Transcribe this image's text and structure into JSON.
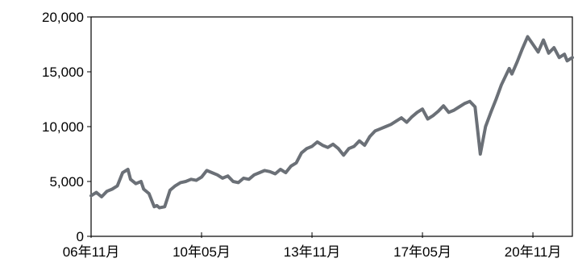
{
  "chart_data": {
    "type": "line",
    "title": "",
    "xlabel": "",
    "ylabel": "",
    "ylim": [
      0,
      20000
    ],
    "grid": false,
    "legend": "none",
    "x_tick_labels": [
      "06年11月",
      "10年05月",
      "13年11月",
      "17年05月",
      "20年11月"
    ],
    "y_tick_labels": [
      "0",
      "5,000",
      "10,000",
      "15,000",
      "20,000"
    ],
    "y_tick_values": [
      0,
      5000,
      10000,
      15000,
      20000
    ],
    "x_tick_positions": [
      0,
      42,
      84,
      126,
      168
    ],
    "x_range": [
      0,
      183
    ],
    "x_unit": "months since 06年11月",
    "series": [
      {
        "color": "#6b7077",
        "x": [
          0,
          2,
          4,
          6,
          8,
          10,
          12,
          14,
          15,
          17,
          19,
          20,
          22,
          24,
          25,
          26,
          28,
          30,
          32,
          34,
          36,
          38,
          40,
          42,
          44,
          46,
          48,
          50,
          52,
          54,
          56,
          58,
          60,
          62,
          64,
          66,
          68,
          70,
          72,
          74,
          76,
          78,
          80,
          82,
          84,
          86,
          88,
          90,
          92,
          94,
          96,
          98,
          100,
          102,
          104,
          106,
          108,
          110,
          112,
          114,
          116,
          118,
          120,
          122,
          124,
          126,
          128,
          130,
          132,
          134,
          136,
          138,
          140,
          142,
          144,
          146,
          148,
          150,
          152,
          154,
          156,
          158,
          159,
          160,
          162,
          164,
          166,
          168,
          170,
          172,
          174,
          176,
          178,
          180,
          181,
          183
        ],
        "values": [
          3700,
          4000,
          3600,
          4100,
          4300,
          4600,
          5800,
          6100,
          5200,
          4800,
          5000,
          4300,
          3900,
          2700,
          2800,
          2600,
          2700,
          4200,
          4600,
          4900,
          5000,
          5200,
          5100,
          5400,
          6000,
          5800,
          5600,
          5300,
          5500,
          5000,
          4900,
          5300,
          5200,
          5600,
          5800,
          6000,
          5900,
          5700,
          6100,
          5800,
          6400,
          6700,
          7600,
          8000,
          8200,
          8600,
          8300,
          8100,
          8400,
          8000,
          7400,
          8000,
          8200,
          8700,
          8300,
          9100,
          9600,
          9800,
          10000,
          10200,
          10500,
          10800,
          10400,
          10900,
          11300,
          11600,
          10700,
          11000,
          11400,
          11900,
          11300,
          11500,
          11800,
          12100,
          12300,
          11800,
          7500,
          10000,
          11300,
          12500,
          13800,
          14800,
          15300,
          14800,
          15900,
          17100,
          18200,
          17500,
          16800,
          17900,
          16700,
          17200,
          16300,
          16600,
          16000,
          16300
        ]
      }
    ]
  }
}
